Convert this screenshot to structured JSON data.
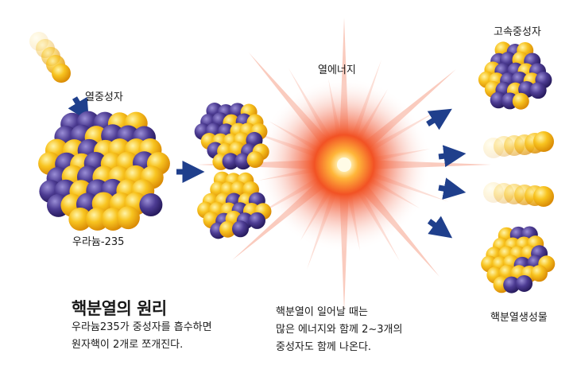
{
  "labels": {
    "thermal_neutron": "열중성자",
    "uranium": "우라늄-235",
    "heat_energy": "열에너지",
    "fast_neutron": "고속중성자",
    "fission_products": "핵분열생성물"
  },
  "captions": {
    "title": "핵분열의 원리",
    "left_line1": "우라늄235가 중성자를 흡수하면",
    "left_line2": "원자핵이 2개로 쪼개진다.",
    "right_line1": "핵분열이 일어날 때는",
    "right_line2": "많은 에너지와 함께 2~3개의",
    "right_line3": "중성자도 함께 나온다."
  },
  "colors": {
    "proton_yellow": "#f6b80f",
    "neutron_purple": "#4d3c93",
    "arrow_blue": "#1f3f8c",
    "burst_red": "#e8221b",
    "burst_orange": "#f58a1f"
  }
}
